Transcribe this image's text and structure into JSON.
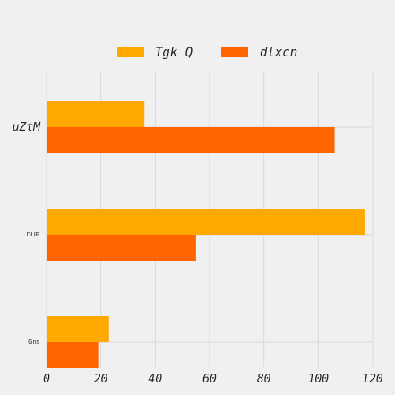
{
  "chart_data": {
    "type": "bar",
    "orientation": "horizontal",
    "categories": [
      "uZtM",
      "DUF",
      "Gns"
    ],
    "series": [
      {
        "name": "Tgk Q",
        "color": "#ffa800",
        "values": [
          36,
          117,
          23
        ]
      },
      {
        "name": "dlxcn",
        "color": "#ff6400",
        "values": [
          106,
          55,
          19
        ]
      }
    ],
    "xlim": [
      0,
      120
    ],
    "xticks": [
      "0",
      "20",
      "40",
      "60",
      "80",
      "100",
      "120"
    ],
    "grid": true,
    "legend_position": "top-center",
    "background": "#f0f0f0"
  }
}
